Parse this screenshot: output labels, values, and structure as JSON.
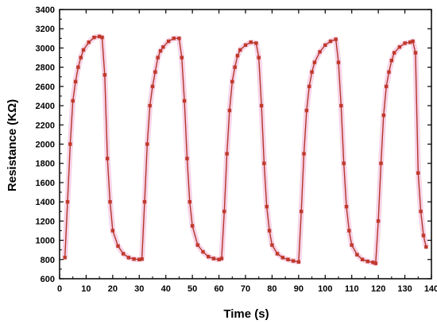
{
  "colors": {
    "line": "#b3362b",
    "marker": "#c0392b",
    "glow": "#f2b8d8",
    "axis": "#000000"
  },
  "chart_data": {
    "type": "line",
    "title": "",
    "xlabel": "Time (s)",
    "ylabel": "Resistance (KΩ)",
    "xlim": [
      0,
      140
    ],
    "ylim": [
      600,
      3400
    ],
    "xticks": [
      0,
      10,
      20,
      30,
      40,
      50,
      60,
      70,
      80,
      90,
      100,
      110,
      120,
      130,
      140
    ],
    "yticks": [
      600,
      800,
      1000,
      1200,
      1400,
      1600,
      1800,
      2000,
      2200,
      2400,
      2600,
      2800,
      3000,
      3200,
      3400
    ],
    "grid": false,
    "legend": "none",
    "series": [
      {
        "x": [
          2,
          3,
          4,
          5,
          6,
          7,
          8,
          9,
          11,
          13,
          15,
          16,
          17,
          18,
          19,
          20,
          22,
          24,
          26,
          28,
          30,
          31,
          32,
          33,
          34,
          35,
          36,
          37,
          38,
          39,
          41,
          43,
          45,
          46,
          47,
          48,
          49,
          50,
          52,
          54,
          56,
          58,
          60,
          61,
          62,
          63,
          64,
          65,
          66,
          67,
          68,
          70,
          72,
          74,
          75,
          76,
          77,
          78,
          79,
          80,
          82,
          84,
          86,
          88,
          90,
          91,
          92,
          93,
          94,
          95,
          96,
          98,
          100,
          102,
          104,
          105,
          106,
          107,
          108,
          109,
          110,
          112,
          114,
          116,
          118,
          119,
          120,
          121,
          122,
          123,
          124,
          125,
          126,
          128,
          130,
          132,
          133,
          134,
          135,
          136,
          137,
          138
        ],
        "y": [
          820,
          1400,
          2000,
          2450,
          2650,
          2800,
          2900,
          2980,
          3060,
          3110,
          3120,
          3110,
          2720,
          1850,
          1400,
          1100,
          940,
          860,
          820,
          805,
          800,
          805,
          1400,
          2000,
          2400,
          2600,
          2750,
          2900,
          2970,
          3010,
          3070,
          3100,
          3100,
          2900,
          2450,
          1850,
          1400,
          1150,
          950,
          880,
          830,
          810,
          800,
          810,
          1300,
          1900,
          2350,
          2650,
          2800,
          2920,
          2980,
          3030,
          3060,
          3050,
          2900,
          2400,
          1800,
          1350,
          1100,
          950,
          860,
          820,
          800,
          785,
          775,
          1300,
          1900,
          2350,
          2600,
          2750,
          2850,
          2960,
          3030,
          3070,
          3090,
          2850,
          2400,
          1800,
          1350,
          1100,
          950,
          850,
          800,
          780,
          770,
          760,
          1200,
          1800,
          2300,
          2600,
          2750,
          2870,
          2950,
          3010,
          3050,
          3060,
          3070,
          2950,
          1700,
          1300,
          1050,
          930
        ]
      }
    ]
  }
}
